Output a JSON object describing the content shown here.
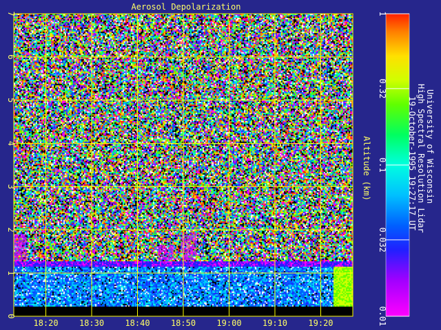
{
  "chart_data": {
    "type": "heatmap",
    "title": "Aerosol Depolarization",
    "ylabel": "Altitude (km)",
    "xlabel": "",
    "x_tick_labels": [
      "18:20",
      "18:30",
      "18:40",
      "18:50",
      "19:00",
      "19:10",
      "19:20"
    ],
    "x_tick_minutes": [
      1100,
      1110,
      1120,
      1130,
      1140,
      1150,
      1160
    ],
    "xlim_minutes": [
      1093,
      1167
    ],
    "y_ticks": [
      0,
      1,
      2,
      3,
      4,
      5,
      6,
      7
    ],
    "ylim": [
      0,
      7
    ],
    "grid": true,
    "colorbar": {
      "scale": "log",
      "range": [
        0.01,
        1
      ],
      "tick_labels": [
        "0.01",
        "0.032",
        "0.1",
        "0.32",
        "1"
      ],
      "tick_values": [
        0.01,
        0.032,
        0.1,
        0.32,
        1
      ]
    },
    "features": {
      "cloud_layer_top_km": 1.3,
      "cloud_layer_bottom_km": 1.15,
      "plumes_km": [
        {
          "time_minutes": 1094,
          "top_km": 1.9
        },
        {
          "time_minutes": 1126,
          "top_km": 1.65
        },
        {
          "time_minutes": 1131,
          "top_km": 1.9
        }
      ]
    }
  },
  "side_text": {
    "line1": "University of Wisconsin",
    "line2": "High Spectral Resolution Lidar",
    "line3": "19-October-1995 19:27:17 UT"
  },
  "colors": {
    "background": "#26268c",
    "grid": "#ffff00",
    "label": "#ffff66"
  }
}
